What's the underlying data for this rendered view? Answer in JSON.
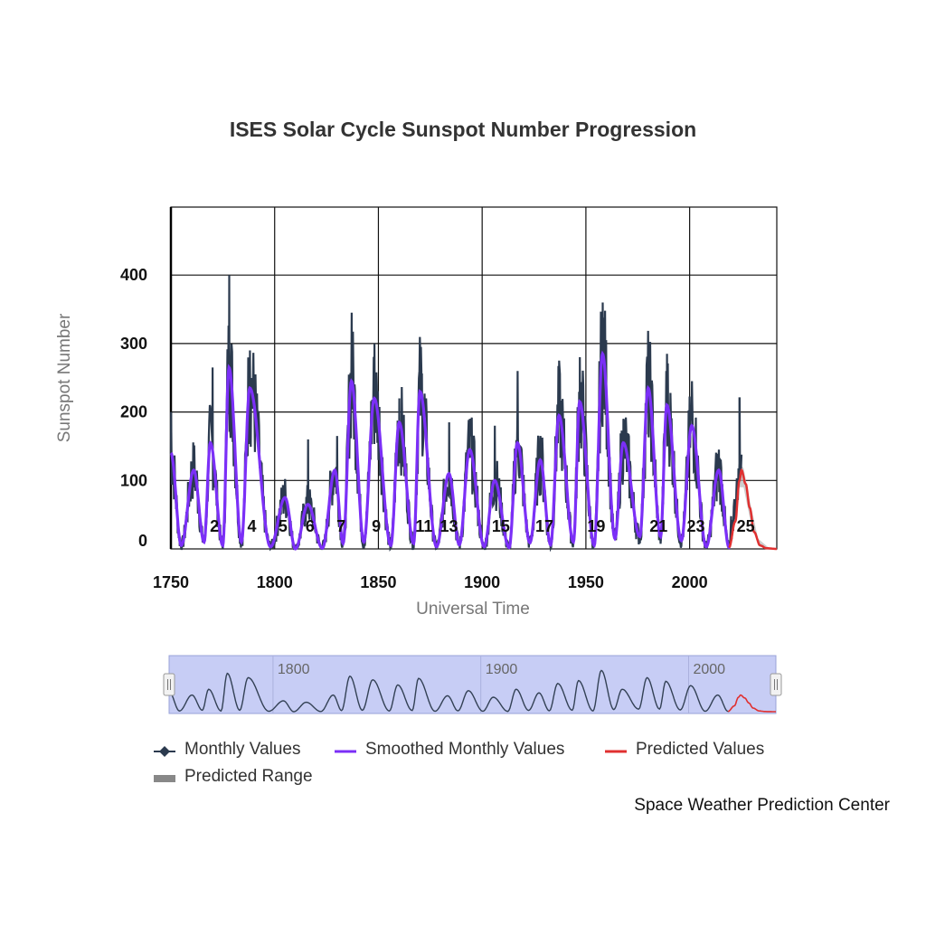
{
  "chart_data": {
    "type": "line",
    "title": "ISES Solar Cycle Sunspot Number Progression",
    "xlabel": "Universal Time",
    "ylabel": "Sunspot Number",
    "xlim": [
      1750,
      2042
    ],
    "ylim": [
      0,
      500
    ],
    "x_ticks": [
      1750,
      1800,
      1850,
      1900,
      1950,
      2000
    ],
    "y_ticks": [
      0,
      100,
      200,
      300,
      400
    ],
    "grid": true,
    "legend_position": "bottom",
    "series": [
      {
        "name": "Monthly Values",
        "color": "#2b3a4e",
        "marker": "diamond",
        "peaks": [
          [
            1750,
            200
          ],
          [
            1761,
            135
          ],
          [
            1770,
            265
          ],
          [
            1778,
            400
          ],
          [
            1788,
            290
          ],
          [
            1805,
            100
          ],
          [
            1816,
            160
          ],
          [
            1830,
            165
          ],
          [
            1837,
            345
          ],
          [
            1848,
            300
          ],
          [
            1860,
            220
          ],
          [
            1870,
            295
          ],
          [
            1884,
            185
          ],
          [
            1894,
            190
          ],
          [
            1906,
            180
          ],
          [
            1917,
            260
          ],
          [
            1928,
            165
          ],
          [
            1937,
            275
          ],
          [
            1947,
            280
          ],
          [
            1958,
            360
          ],
          [
            1968,
            190
          ],
          [
            1980,
            265
          ],
          [
            1989,
            285
          ],
          [
            2001,
            245
          ],
          [
            2014,
            145
          ],
          [
            2024,
            220
          ]
        ]
      },
      {
        "name": "Smoothed Monthly Values",
        "color": "#7b2ff7",
        "peaks": [
          [
            1750,
            140
          ],
          [
            1761,
            115
          ],
          [
            1769,
            155
          ],
          [
            1778,
            265
          ],
          [
            1788,
            235
          ],
          [
            1805,
            75
          ],
          [
            1816,
            65
          ],
          [
            1829,
            115
          ],
          [
            1837,
            245
          ],
          [
            1848,
            220
          ],
          [
            1860,
            185
          ],
          [
            1870,
            230
          ],
          [
            1884,
            110
          ],
          [
            1894,
            145
          ],
          [
            1906,
            100
          ],
          [
            1917,
            155
          ],
          [
            1928,
            130
          ],
          [
            1937,
            195
          ],
          [
            1947,
            215
          ],
          [
            1958,
            285
          ],
          [
            1968,
            155
          ],
          [
            1980,
            235
          ],
          [
            1989,
            210
          ],
          [
            2001,
            180
          ],
          [
            2014,
            115
          ]
        ],
        "minima": [
          [
            1755,
            5
          ],
          [
            1766,
            10
          ],
          [
            1775,
            5
          ],
          [
            1784,
            10
          ],
          [
            1798,
            3
          ],
          [
            1810,
            0
          ],
          [
            1823,
            1
          ],
          [
            1833,
            8
          ],
          [
            1843,
            10
          ],
          [
            1856,
            5
          ],
          [
            1867,
            8
          ],
          [
            1878,
            3
          ],
          [
            1889,
            6
          ],
          [
            1901,
            3
          ],
          [
            1913,
            2
          ],
          [
            1923,
            9
          ],
          [
            1933,
            6
          ],
          [
            1944,
            10
          ],
          [
            1954,
            5
          ],
          [
            1964,
            15
          ],
          [
            1976,
            18
          ],
          [
            1986,
            18
          ],
          [
            1996,
            12
          ],
          [
            2008,
            3
          ],
          [
            2019,
            2
          ]
        ]
      },
      {
        "name": "Predicted Values",
        "color": "#e03030",
        "points": [
          [
            2019,
            2
          ],
          [
            2022,
            40
          ],
          [
            2024,
            100
          ],
          [
            2025,
            115
          ],
          [
            2027,
            95
          ],
          [
            2029,
            60
          ],
          [
            2031,
            25
          ],
          [
            2034,
            5
          ],
          [
            2037,
            1
          ],
          [
            2042,
            0
          ]
        ]
      },
      {
        "name": "Predicted Range",
        "color": "#888888",
        "upper": [
          [
            2021,
            40
          ],
          [
            2024,
            125
          ],
          [
            2026,
            118
          ],
          [
            2029,
            70
          ],
          [
            2033,
            15
          ],
          [
            2038,
            2
          ]
        ],
        "lower": [
          [
            2021,
            25
          ],
          [
            2024,
            90
          ],
          [
            2026,
            90
          ],
          [
            2029,
            45
          ],
          [
            2033,
            5
          ],
          [
            2038,
            0
          ]
        ]
      }
    ],
    "annotations": [
      "2",
      "4",
      "5",
      "6",
      "7",
      "9",
      "11",
      "13",
      "15",
      "17",
      "19",
      "21",
      "23",
      "25"
    ],
    "annotation_x": [
      1771,
      1789,
      1804,
      1817,
      1832,
      1849,
      1872,
      1884,
      1909,
      1930,
      1955,
      1985,
      2003,
      2027
    ],
    "navigator": {
      "ticks": [
        1800,
        1900,
        2000
      ],
      "range": [
        1750,
        2042
      ]
    }
  },
  "legend": {
    "monthly": "Monthly Values",
    "smoothed": "Smoothed Monthly Values",
    "predicted": "Predicted Values",
    "range": "Predicted Range"
  },
  "credit": "Space Weather Prediction Center"
}
